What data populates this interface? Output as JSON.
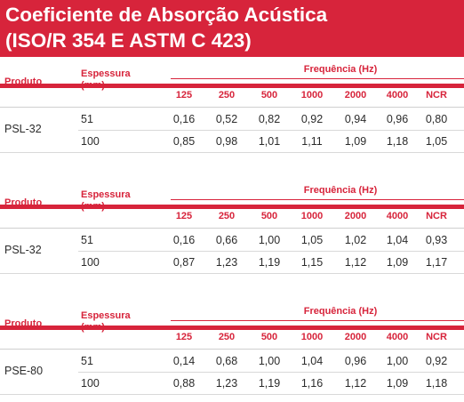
{
  "title": {
    "line1": "Coeficiente de Absorção Acústica",
    "line2": "(ISO/R 354 E ASTM C 423)"
  },
  "headers": {
    "produto": "Produto",
    "espessura_line1": "Espessura",
    "espessura_line2": "(mm)",
    "frequencia": "Frequência (Hz)",
    "columns": [
      "125",
      "250",
      "500",
      "1000",
      "2000",
      "4000",
      "NCR"
    ]
  },
  "tables": [
    {
      "produto": "PSL-32",
      "rows": [
        {
          "espessura": "51",
          "values": [
            "0,16",
            "0,52",
            "0,82",
            "0,92",
            "0,94",
            "0,96",
            "0,80"
          ]
        },
        {
          "espessura": "100",
          "values": [
            "0,85",
            "0,98",
            "1,01",
            "1,11",
            "1,09",
            "1,18",
            "1,05"
          ]
        }
      ]
    },
    {
      "produto": "PSL-32",
      "rows": [
        {
          "espessura": "51",
          "values": [
            "0,16",
            "0,66",
            "1,00",
            "1,05",
            "1,02",
            "1,04",
            "0,93"
          ]
        },
        {
          "espessura": "100",
          "values": [
            "0,87",
            "1,23",
            "1,19",
            "1,15",
            "1,12",
            "1,09",
            "1,17"
          ]
        }
      ]
    },
    {
      "produto": "PSE-80",
      "rows": [
        {
          "espessura": "51",
          "values": [
            "0,14",
            "0,68",
            "1,00",
            "1,04",
            "0,96",
            "1,00",
            "0,92"
          ]
        },
        {
          "espessura": "100",
          "values": [
            "0,88",
            "1,23",
            "1,19",
            "1,16",
            "1,12",
            "1,09",
            "1,18"
          ]
        }
      ]
    }
  ],
  "colors": {
    "accent": "#d7243b",
    "text": "#2b2b2b"
  }
}
